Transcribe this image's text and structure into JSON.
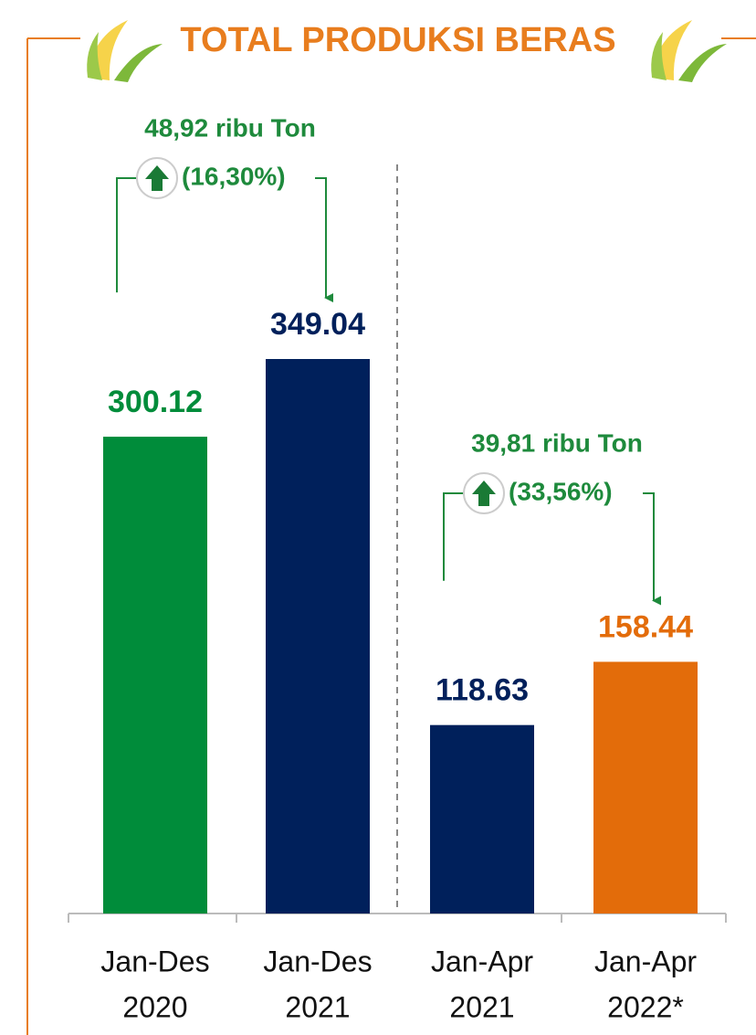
{
  "chart_data": {
    "type": "bar",
    "title": "TOTAL PRODUKSI BERAS",
    "categories": [
      [
        "Jan-Des",
        "2020"
      ],
      [
        "Jan-Des",
        "2021"
      ],
      [
        "Jan-Apr",
        "2021"
      ],
      [
        "Jan-Apr",
        "2022*"
      ]
    ],
    "values": [
      300.12,
      349.04,
      118.63,
      158.44
    ],
    "colors": [
      "#008c3a",
      "#00205b",
      "#00205b",
      "#e36c0a"
    ],
    "annotations": [
      {
        "text": "48,92 ribu Ton",
        "detail": "(16,30%)",
        "color": "#1e8a3c"
      },
      {
        "text": "39,81 ribu Ton",
        "detail": "(33,56%)",
        "color": "#1e8a3c"
      }
    ]
  }
}
